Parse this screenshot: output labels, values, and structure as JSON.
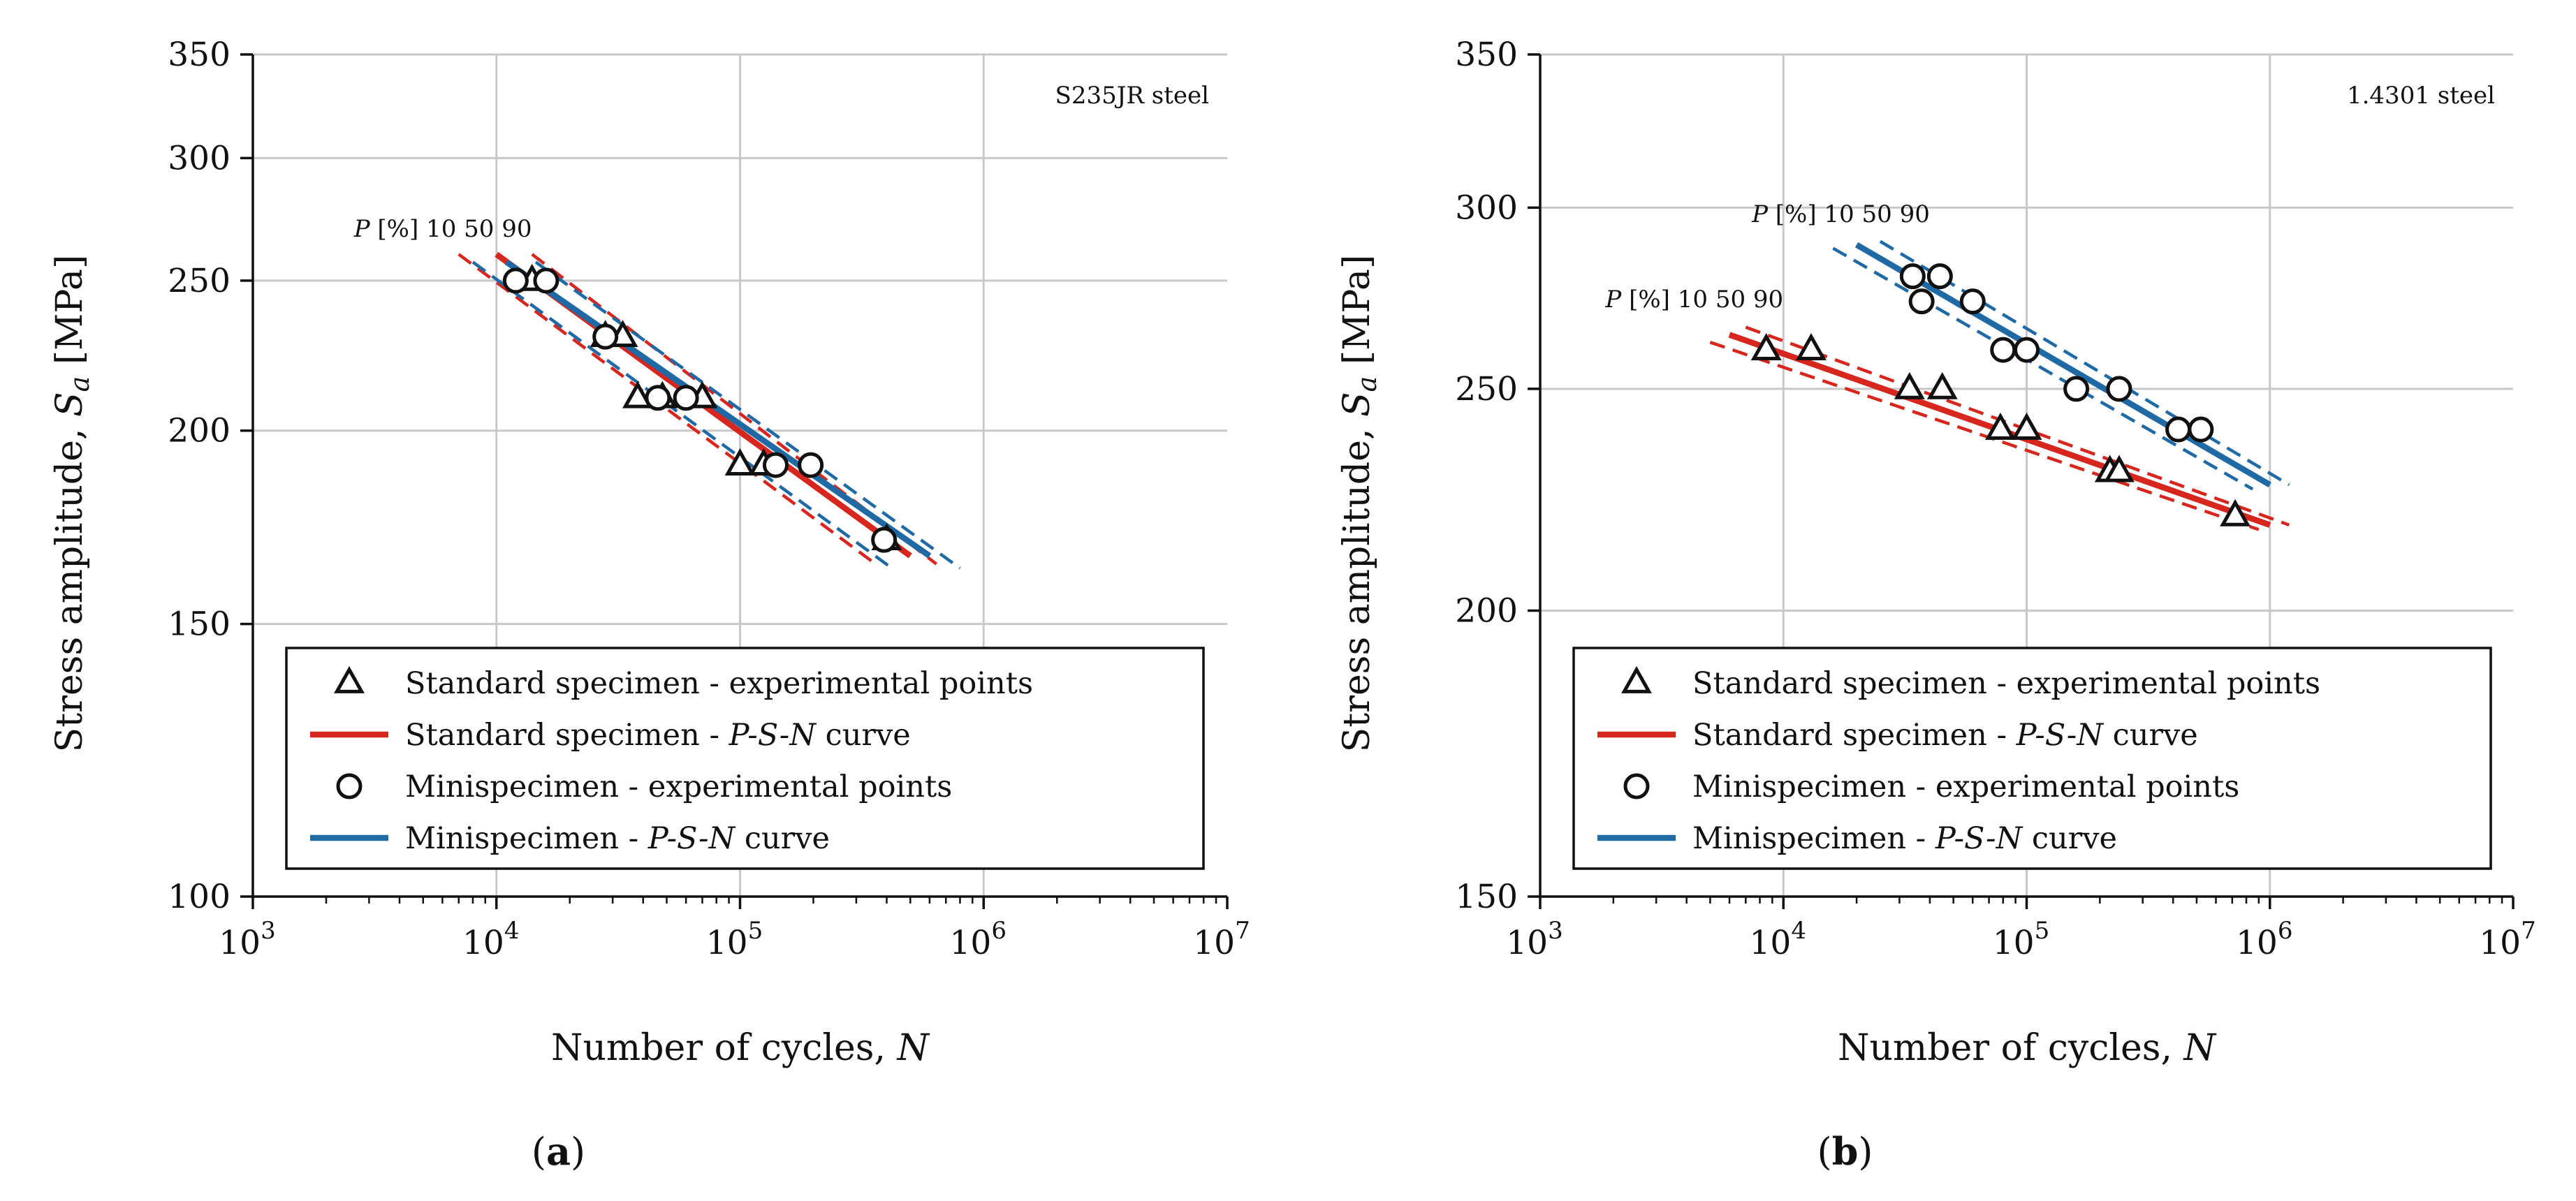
{
  "figure": {
    "colors": {
      "red": "#d7261e",
      "blue": "#1f6aa5",
      "grid": "#c8c8c8",
      "axis": "#111111"
    }
  },
  "chart_data": [
    {
      "type": "scatter",
      "id": "a",
      "panel_label": "a",
      "title": "S235JR steel",
      "xlabel_prefix": "Number of cycles, ",
      "xlabel_var": "N",
      "ylabel_prefix": "Stress amplitude, ",
      "ylabel_var": "S",
      "ylabel_sub": "a",
      "ylabel_unit": " [MPa]",
      "xscale": "log",
      "yscale": "log",
      "xlim": [
        1000,
        10000000
      ],
      "ylim": [
        100,
        350
      ],
      "x_ticks": [
        1000,
        10000,
        100000,
        1000000,
        10000000
      ],
      "x_tick_exps": [
        "3",
        "4",
        "5",
        "6",
        "7"
      ],
      "x_tick_base": "10",
      "y_ticks": [
        100,
        150,
        200,
        250,
        300,
        350
      ],
      "y_tick_labels": [
        "100",
        "150",
        "200",
        "250",
        "300",
        "350"
      ],
      "grid": true,
      "prob_annotation": {
        "var": "P",
        "prefix": " [%] ",
        "levels": "10  50  90",
        "x": 7000,
        "y": 262
      },
      "legend": {
        "position": "bottom",
        "entries": [
          {
            "marker": "triangle",
            "text": "Standard specimen - experimental points"
          },
          {
            "marker": "red-line",
            "text_pre": "Standard specimen - ",
            "text_it": "P-S-N",
            "text_post": " curve"
          },
          {
            "marker": "circle",
            "text": "Minispecimen - experimental points"
          },
          {
            "marker": "blue-line",
            "text_pre": "Minispecimen - ",
            "text_it": "P-S-N",
            "text_post": " curve"
          }
        ]
      },
      "series": [
        {
          "name": "Standard specimen - experimental points",
          "kind": "triangle",
          "points": [
            [
              14000,
              250
            ],
            [
              28000,
              230
            ],
            [
              33000,
              230
            ],
            [
              38000,
              210
            ],
            [
              48000,
              210
            ],
            [
              70000,
              210
            ],
            [
              100000,
              190
            ],
            [
              125000,
              190
            ],
            [
              400000,
              170
            ]
          ]
        },
        {
          "name": "Minispecimen - experimental points",
          "kind": "circle",
          "points": [
            [
              12000,
              250
            ],
            [
              16000,
              250
            ],
            [
              28000,
              230
            ],
            [
              46000,
              210
            ],
            [
              60000,
              210
            ],
            [
              140000,
              190
            ],
            [
              195000,
              190
            ],
            [
              390000,
              170
            ]
          ]
        },
        {
          "name": "Standard specimen - P-S-N curve (P=50%)",
          "kind": "line",
          "color": "red",
          "dash": false,
          "points": [
            [
              10000,
              260
            ],
            [
              500000,
              166
            ]
          ]
        },
        {
          "name": "Standard specimen - P-S-N curve (P=10%)",
          "kind": "line",
          "color": "red",
          "dash": true,
          "points": [
            [
              7000,
              260
            ],
            [
              360000,
              164
            ]
          ]
        },
        {
          "name": "Standard specimen - P-S-N curve (P=90%)",
          "kind": "line",
          "color": "red",
          "dash": true,
          "points": [
            [
              14000,
              260
            ],
            [
              640000,
              164
            ]
          ]
        },
        {
          "name": "Minispecimen - P-S-N curve (P=50%)",
          "kind": "line",
          "color": "blue",
          "dash": false,
          "points": [
            [
              11000,
              257
            ],
            [
              600000,
              166
            ]
          ]
        },
        {
          "name": "Minispecimen - P-S-N curve (P=10%)",
          "kind": "line",
          "color": "blue",
          "dash": true,
          "points": [
            [
              8000,
              257
            ],
            [
              420000,
              163
            ]
          ]
        },
        {
          "name": "Minispecimen - P-S-N curve (P=90%)",
          "kind": "line",
          "color": "blue",
          "dash": true,
          "points": [
            [
              14500,
              257
            ],
            [
              800000,
              163
            ]
          ]
        }
      ]
    },
    {
      "type": "scatter",
      "id": "b",
      "panel_label": "b",
      "title": "1.4301 steel",
      "xlabel_prefix": "Number of cycles, ",
      "xlabel_var": "N",
      "ylabel_prefix": "Stress amplitude, ",
      "ylabel_var": "S",
      "ylabel_sub": "a",
      "ylabel_unit": " [MPa]",
      "xscale": "log",
      "yscale": "log",
      "xlim": [
        1000,
        10000000
      ],
      "ylim": [
        150,
        350
      ],
      "x_ticks": [
        1000,
        10000,
        100000,
        1000000,
        10000000
      ],
      "x_tick_exps": [
        "3",
        "4",
        "5",
        "6",
        "7"
      ],
      "x_tick_base": "10",
      "y_ticks": [
        150,
        200,
        250,
        300,
        350
      ],
      "y_tick_labels": [
        "150",
        "200",
        "250",
        "300",
        "350"
      ],
      "grid": true,
      "prob_annotations": [
        {
          "var": "P",
          "prefix": " [%] ",
          "levels": "10  50  90",
          "x": 20000,
          "y": 292
        },
        {
          "var": "P",
          "prefix": " [%] ",
          "levels": "10  50  90",
          "x": 5000,
          "y": 268
        }
      ],
      "legend": {
        "position": "bottom",
        "entries": [
          {
            "marker": "triangle",
            "text": "Standard specimen - experimental points"
          },
          {
            "marker": "red-line",
            "text_pre": "Standard specimen - ",
            "text_it": "P-S-N",
            "text_post": " curve"
          },
          {
            "marker": "circle",
            "text": "Minispecimen - experimental points"
          },
          {
            "marker": "blue-line",
            "text_pre": "Minispecimen - ",
            "text_it": "P-S-N",
            "text_post": " curve"
          }
        ]
      },
      "series": [
        {
          "name": "Standard specimen - experimental points",
          "kind": "triangle",
          "points": [
            [
              8500,
              260
            ],
            [
              13000,
              260
            ],
            [
              33000,
              250
            ],
            [
              45000,
              250
            ],
            [
              78000,
              240
            ],
            [
              100000,
              240
            ],
            [
              220000,
              230
            ],
            [
              240000,
              230
            ],
            [
              720000,
              220
            ]
          ]
        },
        {
          "name": "Minispecimen - experimental points",
          "kind": "circle",
          "points": [
            [
              34000,
              280
            ],
            [
              44000,
              280
            ],
            [
              37000,
              273
            ],
            [
              60000,
              273
            ],
            [
              80000,
              260
            ],
            [
              100000,
              260
            ],
            [
              160000,
              250
            ],
            [
              240000,
              250
            ],
            [
              420000,
              240
            ],
            [
              520000,
              240
            ]
          ]
        },
        {
          "name": "Standard specimen - P-S-N curve (P=50%)",
          "kind": "line",
          "color": "red",
          "dash": false,
          "points": [
            [
              6000,
              264
            ],
            [
              1000000,
              218
            ]
          ]
        },
        {
          "name": "Standard specimen - P-S-N curve (P=10%)",
          "kind": "line",
          "color": "red",
          "dash": true,
          "points": [
            [
              5000,
              262
            ],
            [
              900000,
              217
            ]
          ]
        },
        {
          "name": "Standard specimen - P-S-N curve (P=90%)",
          "kind": "line",
          "color": "red",
          "dash": true,
          "points": [
            [
              7000,
              266
            ],
            [
              1200000,
              218
            ]
          ]
        },
        {
          "name": "Minispecimen - P-S-N curve (P=50%)",
          "kind": "line",
          "color": "blue",
          "dash": false,
          "points": [
            [
              20000,
              289
            ],
            [
              1000000,
              227
            ]
          ]
        },
        {
          "name": "Minispecimen - P-S-N curve (P=10%)",
          "kind": "line",
          "color": "blue",
          "dash": true,
          "points": [
            [
              16000,
              288
            ],
            [
              850000,
              226
            ]
          ]
        },
        {
          "name": "Minispecimen - P-S-N curve (P=90%)",
          "kind": "line",
          "color": "blue",
          "dash": true,
          "points": [
            [
              25000,
              290
            ],
            [
              1200000,
              227
            ]
          ]
        }
      ]
    }
  ]
}
